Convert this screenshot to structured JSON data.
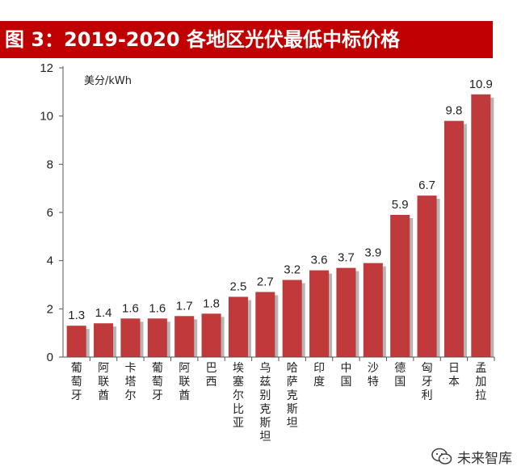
{
  "chart_data": {
    "type": "bar",
    "title": "图 3：2019-2020 各地区光伏最低中标价格",
    "ylabel": "美分/kWh",
    "xlabel": "",
    "ylim": [
      0,
      12
    ],
    "yticks": [
      0,
      2,
      4,
      6,
      8,
      10,
      12
    ],
    "grid": false,
    "categories": [
      "葡萄牙",
      "阿联酋",
      "卡塔尔",
      "葡萄牙",
      "阿联酋",
      "巴西",
      "埃塞尔比亚",
      "乌兹别克斯坦",
      "哈萨克斯坦",
      "印度",
      "中国",
      "沙特",
      "德国",
      "匈牙利",
      "日本",
      "孟加拉"
    ],
    "values": [
      1.3,
      1.4,
      1.6,
      1.6,
      1.7,
      1.8,
      2.5,
      2.7,
      3.2,
      3.6,
      3.7,
      3.9,
      5.9,
      6.7,
      9.8,
      10.9
    ],
    "value_labels": [
      "1.3",
      "1.4",
      "1.6",
      "1.6",
      "1.7",
      "1.8",
      "2.5",
      "2.7",
      "3.2",
      "3.6",
      "3.7",
      "3.9",
      "5.9",
      "6.7",
      "9.8",
      "10.9"
    ],
    "colors": {
      "bar": "#c0393b",
      "shadow": "#b5b5b5",
      "title_bg": "#c00000",
      "axis": "#555555"
    }
  },
  "watermark": {
    "text": "未来智库",
    "icon": "wechat-icon"
  }
}
